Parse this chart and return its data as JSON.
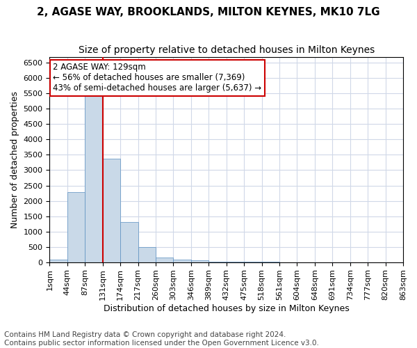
{
  "title": "2, AGASE WAY, BROOKLANDS, MILTON KEYNES, MK10 7LG",
  "subtitle": "Size of property relative to detached houses in Milton Keynes",
  "xlabel": "Distribution of detached houses by size in Milton Keynes",
  "ylabel": "Number of detached properties",
  "footnote1": "Contains HM Land Registry data © Crown copyright and database right 2024.",
  "footnote2": "Contains public sector information licensed under the Open Government Licence v3.0.",
  "bin_labels": [
    "1sqm",
    "44sqm",
    "87sqm",
    "131sqm",
    "174sqm",
    "217sqm",
    "260sqm",
    "303sqm",
    "346sqm",
    "389sqm",
    "432sqm",
    "475sqm",
    "518sqm",
    "561sqm",
    "604sqm",
    "648sqm",
    "691sqm",
    "734sqm",
    "777sqm",
    "820sqm",
    "863sqm"
  ],
  "bar_values": [
    75,
    2280,
    5430,
    3380,
    1300,
    480,
    160,
    80,
    50,
    20,
    10,
    5,
    3,
    2,
    1,
    1,
    0,
    0,
    0,
    0
  ],
  "bar_color": "#c9d9e8",
  "bar_edge_color": "#5a8fc0",
  "grid_color": "#d0d8e8",
  "property_label": "2 AGASE WAY: 129sqm",
  "annotation_line1": "← 56% of detached houses are smaller (7,369)",
  "annotation_line2": "43% of semi-detached houses are larger (5,637) →",
  "vline_color": "#cc0000",
  "annotation_box_color": "#cc0000",
  "ylim": [
    0,
    6700
  ],
  "yticks": [
    0,
    500,
    1000,
    1500,
    2000,
    2500,
    3000,
    3500,
    4000,
    4500,
    5000,
    5500,
    6000,
    6500
  ],
  "title_fontsize": 11,
  "subtitle_fontsize": 10,
  "axis_label_fontsize": 9,
  "tick_fontsize": 8,
  "annotation_fontsize": 8.5,
  "footnote_fontsize": 7.5
}
